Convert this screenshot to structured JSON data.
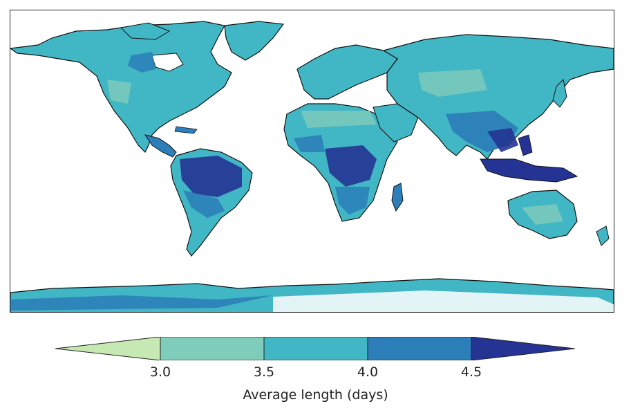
{
  "map": {
    "projection": "PlateCarree",
    "variable": "Average length",
    "units": "days",
    "palette": {
      "below_3_0": "#c6e9b4",
      "3_0_to_3_5": "#7fccba",
      "3_5_to_4_0": "#41b6c4",
      "4_0_to_4_5": "#2c7fb8",
      "above_4_5": "#253494",
      "coastline": "#111111"
    }
  },
  "colorbar": {
    "label": "Average length (days)",
    "ticks": [
      "3.0",
      "3.5",
      "4.0",
      "4.5"
    ],
    "extend": "both"
  }
}
